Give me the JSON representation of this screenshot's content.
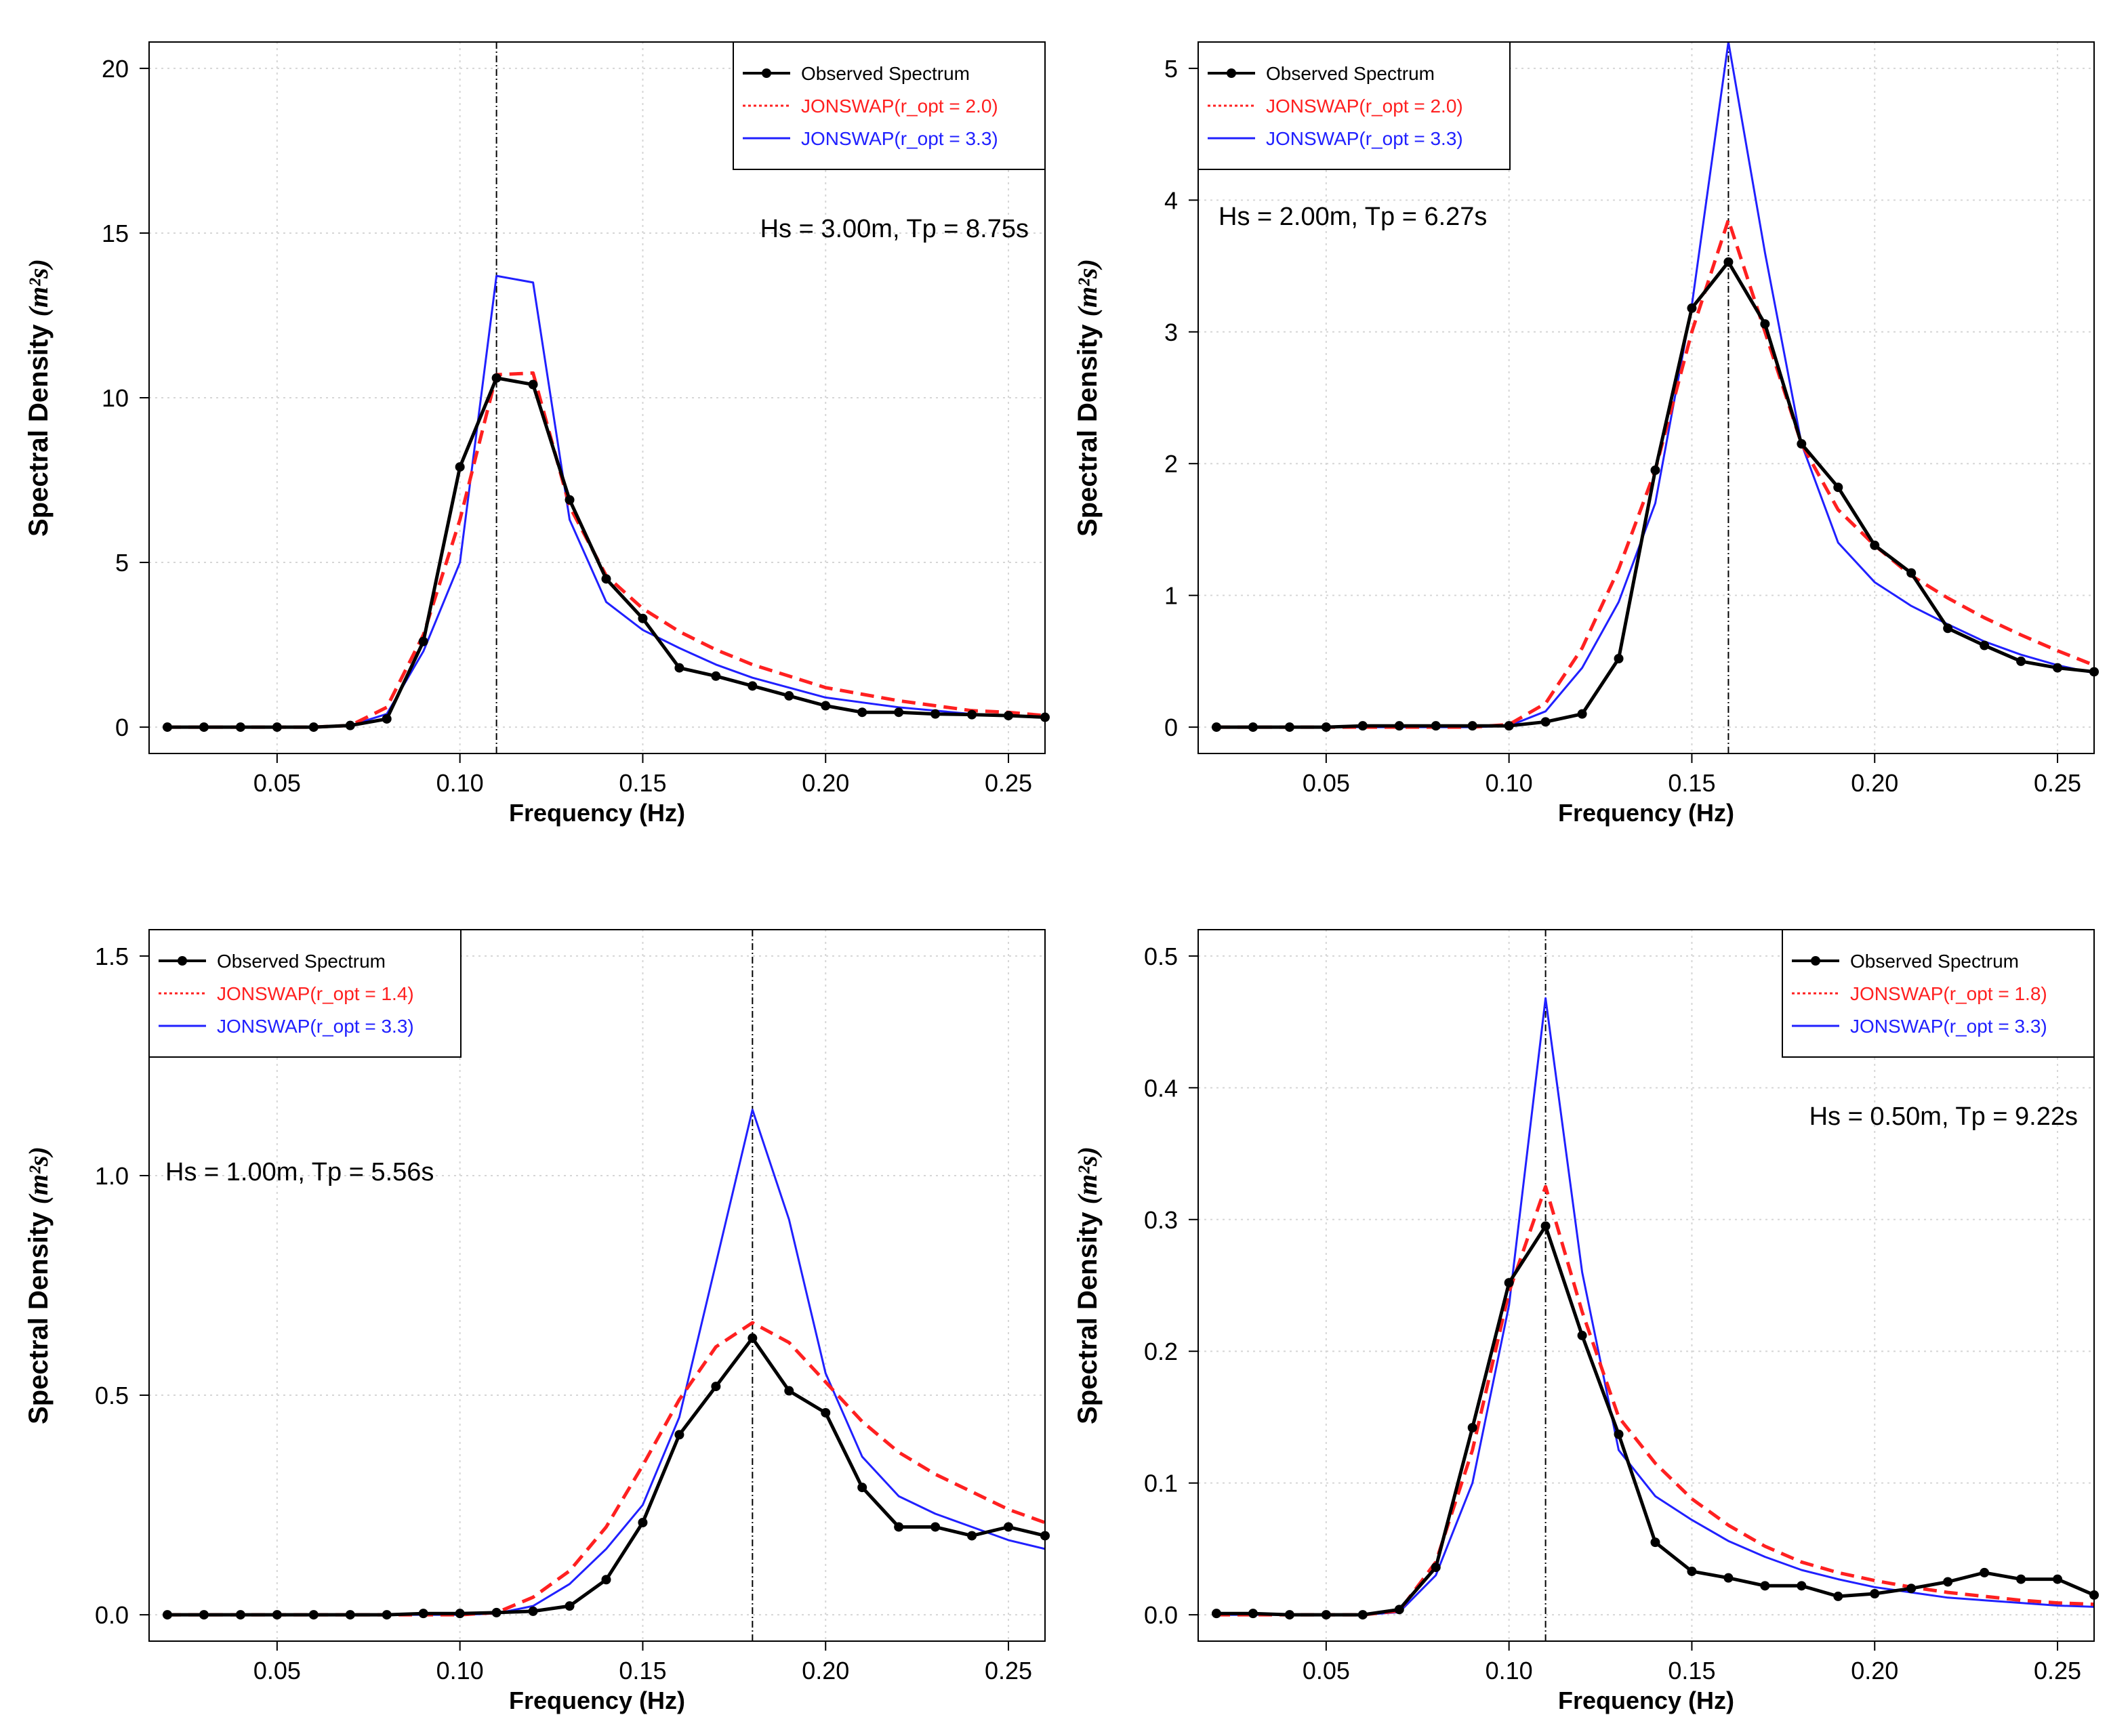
{
  "figure_title": "",
  "colors": {
    "observed": "#000000",
    "fit_optimal": "#ff2020",
    "fit_standard": "#2020ff",
    "grid": "#d6d6d6",
    "peak_line": "#000000"
  },
  "chart_data": [
    {
      "type": "line",
      "title": "",
      "xlabel": "Frequency (Hz)",
      "ylabel_text": "Spectral Density ",
      "ylabel_unit": "(m²s)",
      "xlim": [
        0.015,
        0.26
      ],
      "ylim": [
        -0.8,
        20.8
      ],
      "xticks": [
        0.05,
        0.1,
        0.15,
        0.2,
        0.25
      ],
      "xtick_labels": [
        "0.05",
        "0.10",
        "0.15",
        "0.20",
        "0.25"
      ],
      "yticks": [
        0,
        5,
        10,
        15,
        20
      ],
      "ytick_labels": [
        "0",
        "5",
        "10",
        "15",
        "20"
      ],
      "grid": true,
      "peak_frequency": 0.11,
      "legend_position": "top-right",
      "annotation": "Hs = 3.00m,  Tp = 8.75s",
      "annotation_position": "upper-right",
      "series": [
        {
          "name": "Observed Spectrum",
          "style": "line-points",
          "x": [
            0.02,
            0.03,
            0.04,
            0.05,
            0.06,
            0.07,
            0.08,
            0.09,
            0.1,
            0.11,
            0.12,
            0.13,
            0.14,
            0.15,
            0.16,
            0.17,
            0.18,
            0.19,
            0.2,
            0.21,
            0.22,
            0.23,
            0.24,
            0.25,
            0.26
          ],
          "y": [
            0,
            0,
            0,
            0,
            0,
            0.05,
            0.25,
            2.6,
            7.9,
            10.6,
            10.4,
            6.9,
            4.5,
            3.3,
            1.8,
            1.55,
            1.25,
            0.95,
            0.65,
            0.45,
            0.45,
            0.4,
            0.38,
            0.35,
            0.3
          ]
        },
        {
          "name": "JONSWAP(r_opt = 2.0)",
          "style": "dashed",
          "x": [
            0.02,
            0.03,
            0.04,
            0.05,
            0.06,
            0.07,
            0.08,
            0.09,
            0.1,
            0.11,
            0.12,
            0.13,
            0.14,
            0.15,
            0.16,
            0.17,
            0.18,
            0.19,
            0.2,
            0.21,
            0.22,
            0.23,
            0.24,
            0.25,
            0.26
          ],
          "y": [
            0,
            0,
            0,
            0,
            0,
            0.05,
            0.6,
            2.8,
            6.3,
            10.7,
            10.75,
            6.7,
            4.6,
            3.6,
            2.9,
            2.35,
            1.9,
            1.55,
            1.2,
            1.0,
            0.8,
            0.65,
            0.5,
            0.45,
            0.35
          ]
        },
        {
          "name": "JONSWAP(r_opt = 3.3)",
          "style": "solid",
          "x": [
            0.02,
            0.03,
            0.04,
            0.05,
            0.06,
            0.07,
            0.08,
            0.09,
            0.1,
            0.11,
            0.12,
            0.13,
            0.14,
            0.15,
            0.16,
            0.17,
            0.18,
            0.19,
            0.2,
            0.21,
            0.22,
            0.23,
            0.24,
            0.25,
            0.26
          ],
          "y": [
            0,
            0,
            0,
            0,
            0,
            0.05,
            0.4,
            2.3,
            5.0,
            13.7,
            13.5,
            6.3,
            3.8,
            2.95,
            2.4,
            1.9,
            1.5,
            1.2,
            0.9,
            0.75,
            0.6,
            0.5,
            0.4,
            0.35,
            0.3
          ]
        }
      ]
    },
    {
      "type": "line",
      "title": "",
      "xlabel": "Frequency (Hz)",
      "ylabel_text": "Spectral Density ",
      "ylabel_unit": "(m²s)",
      "xlim": [
        0.015,
        0.26
      ],
      "ylim": [
        -0.2,
        5.2
      ],
      "xticks": [
        0.05,
        0.1,
        0.15,
        0.2,
        0.25
      ],
      "xtick_labels": [
        "0.05",
        "0.10",
        "0.15",
        "0.20",
        "0.25"
      ],
      "yticks": [
        0,
        1,
        2,
        3,
        4,
        5
      ],
      "ytick_labels": [
        "0",
        "1",
        "2",
        "3",
        "4",
        "5"
      ],
      "grid": true,
      "peak_frequency": 0.16,
      "legend_position": "top-left",
      "annotation": "Hs = 2.00m,  Tp = 6.27s",
      "annotation_position": "upper-left",
      "series": [
        {
          "name": "Observed Spectrum",
          "style": "line-points",
          "x": [
            0.02,
            0.03,
            0.04,
            0.05,
            0.06,
            0.07,
            0.08,
            0.09,
            0.1,
            0.11,
            0.12,
            0.13,
            0.14,
            0.15,
            0.16,
            0.17,
            0.18,
            0.19,
            0.2,
            0.21,
            0.22,
            0.23,
            0.24,
            0.25,
            0.26
          ],
          "y": [
            0,
            0,
            0,
            0,
            0.01,
            0.01,
            0.01,
            0.01,
            0.01,
            0.04,
            0.1,
            0.52,
            1.95,
            3.18,
            3.53,
            3.06,
            2.15,
            1.82,
            1.38,
            1.17,
            0.75,
            0.62,
            0.5,
            0.45,
            0.42
          ]
        },
        {
          "name": "JONSWAP(r_opt = 2.0)",
          "style": "dashed",
          "x": [
            0.02,
            0.03,
            0.04,
            0.05,
            0.06,
            0.07,
            0.08,
            0.09,
            0.1,
            0.11,
            0.12,
            0.13,
            0.14,
            0.15,
            0.16,
            0.17,
            0.18,
            0.19,
            0.2,
            0.21,
            0.22,
            0.23,
            0.24,
            0.25,
            0.26
          ],
          "y": [
            0,
            0,
            0,
            0,
            0,
            0,
            0,
            0,
            0.02,
            0.18,
            0.6,
            1.2,
            1.95,
            3.0,
            3.85,
            3.0,
            2.15,
            1.65,
            1.38,
            1.15,
            0.98,
            0.83,
            0.7,
            0.58,
            0.47
          ]
        },
        {
          "name": "JONSWAP(r_opt = 3.3)",
          "style": "solid",
          "x": [
            0.02,
            0.03,
            0.04,
            0.05,
            0.06,
            0.07,
            0.08,
            0.09,
            0.1,
            0.11,
            0.12,
            0.13,
            0.14,
            0.15,
            0.16,
            0.17,
            0.18,
            0.19,
            0.2,
            0.21,
            0.22,
            0.23,
            0.24,
            0.25,
            0.26
          ],
          "y": [
            0,
            0,
            0,
            0,
            0,
            0,
            0,
            0,
            0.01,
            0.12,
            0.45,
            0.95,
            1.7,
            3.2,
            5.2,
            3.6,
            2.15,
            1.4,
            1.1,
            0.92,
            0.78,
            0.65,
            0.55,
            0.47,
            0.41
          ]
        }
      ]
    },
    {
      "type": "line",
      "title": "",
      "xlabel": "Frequency (Hz)",
      "ylabel_text": "Spectral Density ",
      "ylabel_unit": "(m²s)",
      "xlim": [
        0.015,
        0.26
      ],
      "ylim": [
        -0.06,
        1.56
      ],
      "xticks": [
        0.05,
        0.1,
        0.15,
        0.2,
        0.25
      ],
      "xtick_labels": [
        "0.05",
        "0.10",
        "0.15",
        "0.20",
        "0.25"
      ],
      "yticks": [
        0,
        0.5,
        1.0,
        1.5
      ],
      "ytick_labels": [
        "0.0",
        "0.5",
        "1.0",
        "1.5"
      ],
      "grid": true,
      "peak_frequency": 0.18,
      "legend_position": "top-left",
      "annotation": "Hs = 1.00m,  Tp = 5.56s",
      "annotation_position": "middle-left",
      "series": [
        {
          "name": "Observed Spectrum",
          "style": "line-points",
          "x": [
            0.02,
            0.03,
            0.04,
            0.05,
            0.06,
            0.07,
            0.08,
            0.09,
            0.1,
            0.11,
            0.12,
            0.13,
            0.14,
            0.15,
            0.16,
            0.17,
            0.18,
            0.19,
            0.2,
            0.21,
            0.22,
            0.23,
            0.24,
            0.25,
            0.26
          ],
          "y": [
            0,
            0,
            0,
            0,
            0,
            0,
            0,
            0.003,
            0.003,
            0.005,
            0.008,
            0.02,
            0.08,
            0.21,
            0.41,
            0.52,
            0.63,
            0.51,
            0.46,
            0.29,
            0.2,
            0.2,
            0.18,
            0.2,
            0.18
          ]
        },
        {
          "name": "JONSWAP(r_opt = 1.4)",
          "style": "dashed",
          "x": [
            0.02,
            0.03,
            0.04,
            0.05,
            0.06,
            0.07,
            0.08,
            0.09,
            0.1,
            0.11,
            0.12,
            0.13,
            0.14,
            0.15,
            0.16,
            0.17,
            0.18,
            0.19,
            0.2,
            0.21,
            0.22,
            0.23,
            0.24,
            0.25,
            0.26
          ],
          "y": [
            0,
            0,
            0,
            0,
            0,
            0,
            0,
            0,
            0,
            0.005,
            0.04,
            0.1,
            0.2,
            0.34,
            0.49,
            0.61,
            0.665,
            0.62,
            0.53,
            0.44,
            0.37,
            0.32,
            0.28,
            0.24,
            0.21
          ]
        },
        {
          "name": "JONSWAP(r_opt = 3.3)",
          "style": "solid",
          "x": [
            0.02,
            0.03,
            0.04,
            0.05,
            0.06,
            0.07,
            0.08,
            0.09,
            0.1,
            0.11,
            0.12,
            0.13,
            0.14,
            0.15,
            0.16,
            0.17,
            0.18,
            0.19,
            0.2,
            0.21,
            0.22,
            0.23,
            0.24,
            0.25,
            0.26
          ],
          "y": [
            0,
            0,
            0,
            0,
            0,
            0,
            0,
            0,
            0,
            0.003,
            0.02,
            0.07,
            0.15,
            0.25,
            0.45,
            0.8,
            1.15,
            0.9,
            0.55,
            0.36,
            0.27,
            0.23,
            0.2,
            0.17,
            0.15
          ]
        }
      ]
    },
    {
      "type": "line",
      "title": "",
      "xlabel": "Frequency (Hz)",
      "ylabel_text": "Spectral Density ",
      "ylabel_unit": "(m²s)",
      "xlim": [
        0.015,
        0.26
      ],
      "ylim": [
        -0.02,
        0.52
      ],
      "xticks": [
        0.05,
        0.1,
        0.15,
        0.2,
        0.25
      ],
      "xtick_labels": [
        "0.05",
        "0.10",
        "0.15",
        "0.20",
        "0.25"
      ],
      "yticks": [
        0,
        0.1,
        0.2,
        0.3,
        0.4,
        0.5
      ],
      "ytick_labels": [
        "0.0",
        "0.1",
        "0.2",
        "0.3",
        "0.4",
        "0.5"
      ],
      "grid": true,
      "peak_frequency": 0.11,
      "legend_position": "top-right",
      "annotation": "Hs = 0.50m,  Tp = 9.22s",
      "annotation_position": "upper-right",
      "series": [
        {
          "name": "Observed Spectrum",
          "style": "line-points",
          "x": [
            0.02,
            0.03,
            0.04,
            0.05,
            0.06,
            0.07,
            0.08,
            0.09,
            0.1,
            0.11,
            0.12,
            0.13,
            0.14,
            0.15,
            0.16,
            0.17,
            0.18,
            0.19,
            0.2,
            0.21,
            0.22,
            0.23,
            0.24,
            0.25,
            0.26
          ],
          "y": [
            0.001,
            0.001,
            0,
            0,
            0,
            0.004,
            0.036,
            0.142,
            0.252,
            0.295,
            0.212,
            0.137,
            0.055,
            0.033,
            0.028,
            0.022,
            0.022,
            0.014,
            0.016,
            0.02,
            0.025,
            0.032,
            0.027,
            0.027,
            0.015
          ]
        },
        {
          "name": "JONSWAP(r_opt = 1.8)",
          "style": "dashed",
          "x": [
            0.02,
            0.03,
            0.04,
            0.05,
            0.06,
            0.07,
            0.08,
            0.09,
            0.1,
            0.11,
            0.12,
            0.13,
            0.14,
            0.15,
            0.16,
            0.17,
            0.18,
            0.19,
            0.2,
            0.21,
            0.22,
            0.23,
            0.24,
            0.25,
            0.26
          ],
          "y": [
            0,
            0,
            0,
            0,
            0,
            0.003,
            0.04,
            0.125,
            0.245,
            0.325,
            0.23,
            0.15,
            0.115,
            0.088,
            0.068,
            0.052,
            0.04,
            0.032,
            0.026,
            0.021,
            0.017,
            0.014,
            0.011,
            0.009,
            0.008
          ]
        },
        {
          "name": "JONSWAP(r_opt = 3.3)",
          "style": "solid",
          "x": [
            0.02,
            0.03,
            0.04,
            0.05,
            0.06,
            0.07,
            0.08,
            0.09,
            0.1,
            0.11,
            0.12,
            0.13,
            0.14,
            0.15,
            0.16,
            0.17,
            0.18,
            0.19,
            0.2,
            0.21,
            0.22,
            0.23,
            0.24,
            0.25,
            0.26
          ],
          "y": [
            0,
            0,
            0,
            0,
            0,
            0.002,
            0.03,
            0.1,
            0.235,
            0.468,
            0.26,
            0.125,
            0.09,
            0.072,
            0.056,
            0.044,
            0.034,
            0.027,
            0.021,
            0.017,
            0.013,
            0.011,
            0.009,
            0.007,
            0.006
          ]
        }
      ]
    }
  ]
}
